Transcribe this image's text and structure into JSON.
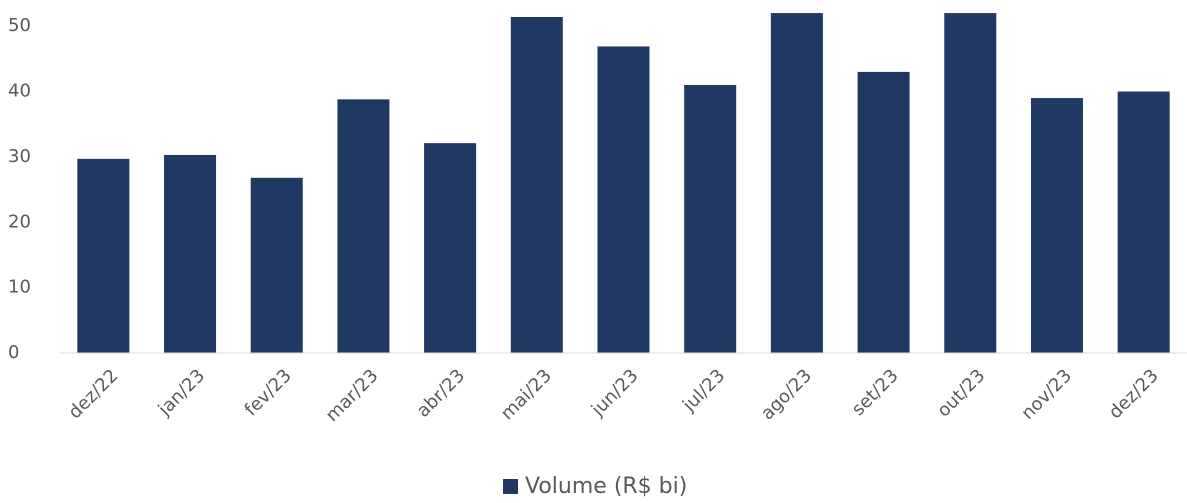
{
  "chart_data": {
    "type": "bar",
    "categories": [
      "dez/22",
      "jan/23",
      "fev/23",
      "mar/23",
      "abr/23",
      "mai/23",
      "jun/23",
      "jul/23",
      "ago/23",
      "set/23",
      "out/23",
      "nov/23",
      "dez/23"
    ],
    "series": [
      {
        "name": "Volume (R$ bi)",
        "color": "#203864",
        "values": [
          29.7,
          30.3,
          26.8,
          38.8,
          32.1,
          51.4,
          46.9,
          41.0,
          52.0,
          43.0,
          52.0,
          39.0,
          40.0
        ]
      }
    ],
    "ylim": [
      0,
      54
    ],
    "yticks": [
      0,
      10,
      20,
      30,
      40,
      50
    ],
    "grid": false,
    "legend": "bottom"
  }
}
